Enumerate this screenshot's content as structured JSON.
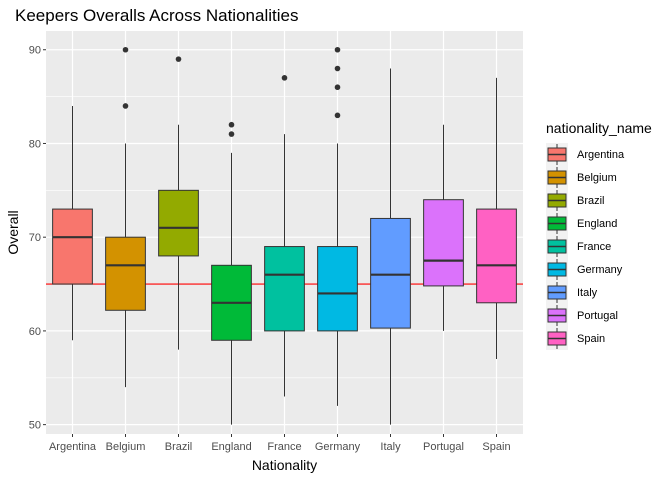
{
  "chart_data": {
    "type": "boxplot",
    "title": "Keepers Overalls Across Nationalities",
    "xlabel": "Nationality",
    "ylabel": "Overall",
    "ylim": [
      49,
      92
    ],
    "yticks": [
      50,
      60,
      70,
      80,
      90
    ],
    "grid": true,
    "legend_title": "nationality_name",
    "legend_placement": "right",
    "reference_line": {
      "y": 65,
      "color": "#ff0000"
    },
    "categories": [
      "Argentina",
      "Belgium",
      "Brazil",
      "England",
      "France",
      "Germany",
      "Italy",
      "Portugal",
      "Spain"
    ],
    "series": [
      {
        "name": "Argentina",
        "color": "#F8766D",
        "min": 59,
        "q1": 65,
        "median": 70,
        "q3": 73,
        "max": 84,
        "outliers": []
      },
      {
        "name": "Belgium",
        "color": "#D39200",
        "min": 54,
        "q1": 62.2,
        "median": 67,
        "q3": 70,
        "max": 80,
        "outliers": [
          84,
          90
        ]
      },
      {
        "name": "Brazil",
        "color": "#93AA00",
        "min": 58,
        "q1": 68,
        "median": 71,
        "q3": 75,
        "max": 82,
        "outliers": [
          89
        ]
      },
      {
        "name": "England",
        "color": "#00BA38",
        "min": 50,
        "q1": 59,
        "median": 63,
        "q3": 67,
        "max": 79,
        "outliers": [
          81,
          82
        ]
      },
      {
        "name": "France",
        "color": "#00C19F",
        "min": 53,
        "q1": 60,
        "median": 66,
        "q3": 69,
        "max": 81,
        "outliers": [
          87
        ]
      },
      {
        "name": "Germany",
        "color": "#00B9E3",
        "min": 52,
        "q1": 60,
        "median": 64,
        "q3": 69,
        "max": 80,
        "outliers": [
          83,
          86,
          88,
          90
        ]
      },
      {
        "name": "Italy",
        "color": "#619CFF",
        "min": 50,
        "q1": 60.3,
        "median": 66,
        "q3": 72,
        "max": 88,
        "outliers": []
      },
      {
        "name": "Portugal",
        "color": "#DB72FB",
        "min": 60,
        "q1": 64.8,
        "median": 67.5,
        "q3": 74,
        "max": 82,
        "outliers": []
      },
      {
        "name": "Spain",
        "color": "#FF61C3",
        "min": 57,
        "q1": 63,
        "median": 67,
        "q3": 73,
        "max": 87,
        "outliers": []
      }
    ]
  }
}
